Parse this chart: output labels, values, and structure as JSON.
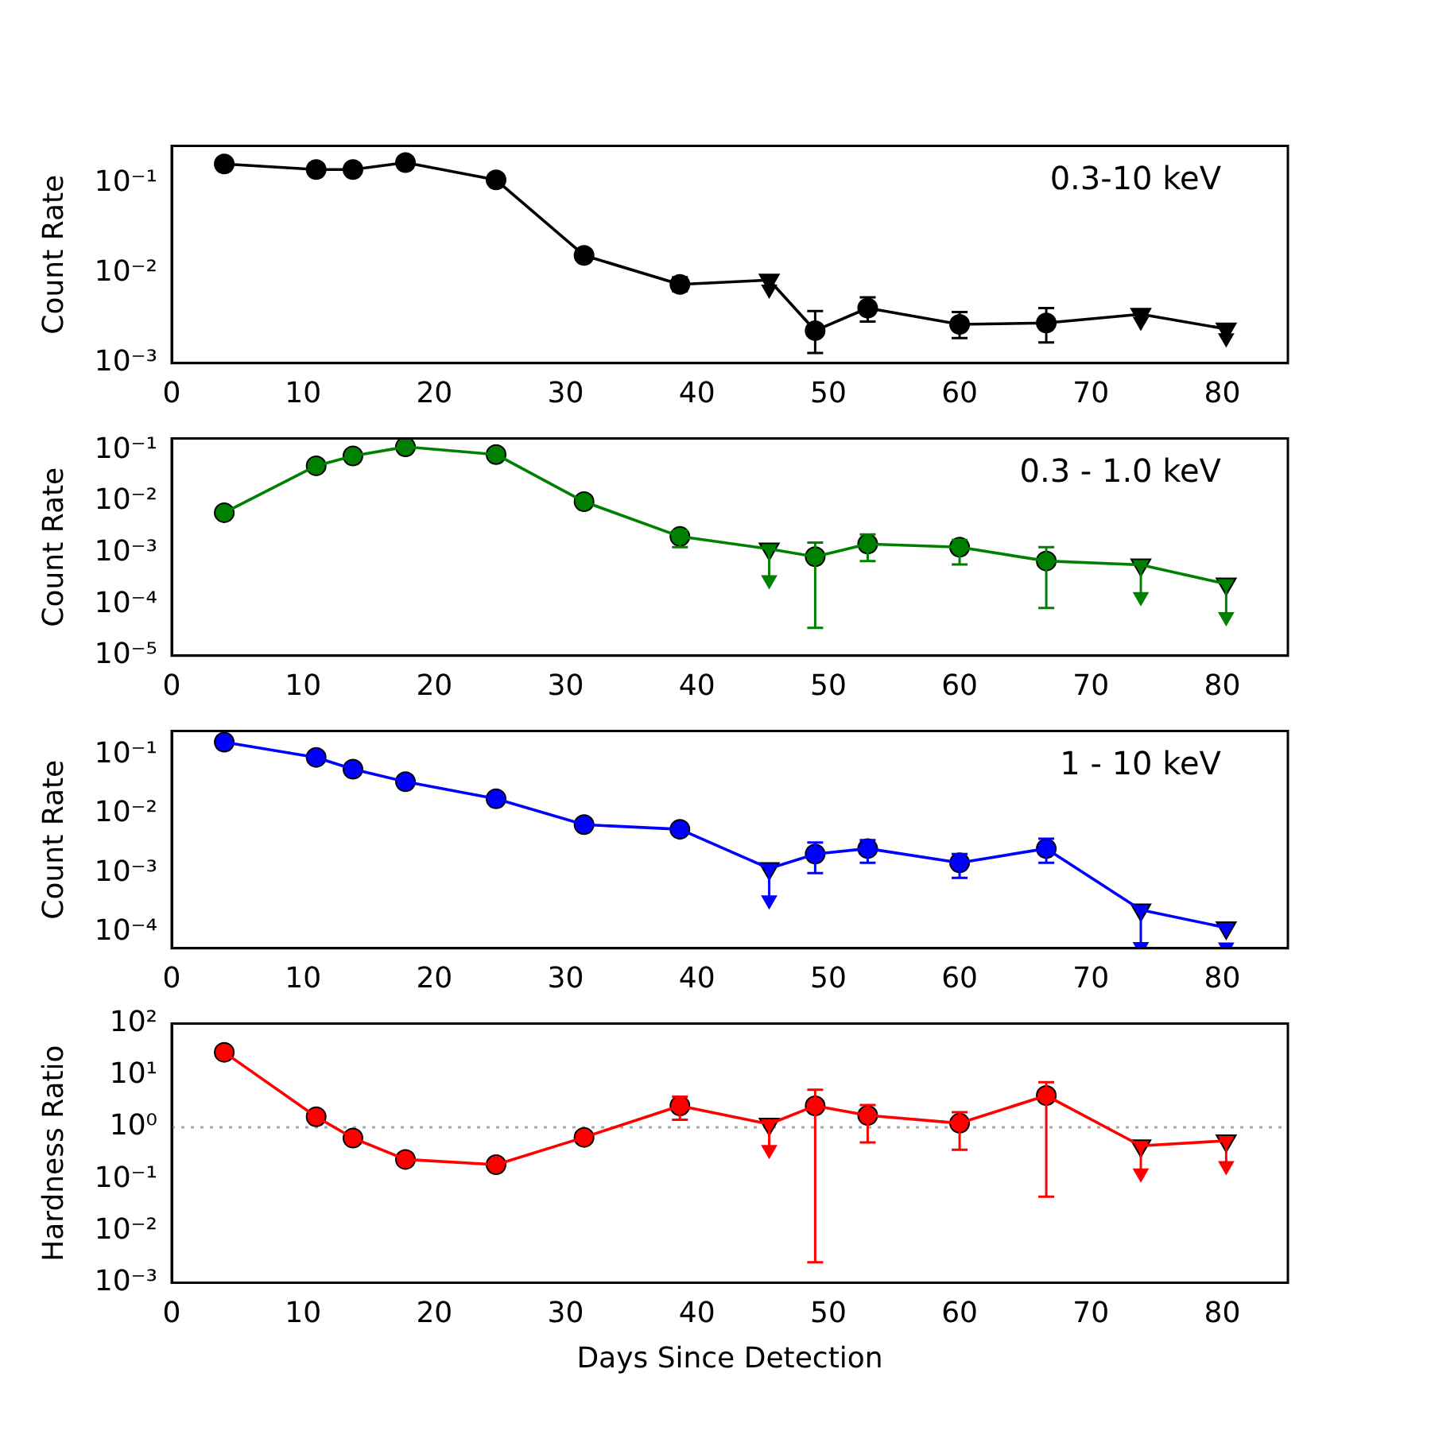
{
  "chart_data": [
    {
      "type": "line",
      "ylabel": "Count Rate",
      "annotations": [
        "0.3-10 keV"
      ],
      "log": "y",
      "grid": false,
      "xlim": [
        0,
        85
      ],
      "xticks": [
        0,
        10,
        20,
        30,
        40,
        50,
        60,
        70,
        80
      ],
      "ylim": [
        0.001,
        0.26
      ],
      "yticks": [
        {
          "value": 0.001,
          "label": "10⁻³"
        },
        {
          "value": 0.01,
          "label": "10⁻²"
        },
        {
          "value": 0.1,
          "label": "10⁻¹"
        }
      ],
      "series": [
        {
          "type": "line",
          "marker": "none",
          "color": "#000000",
          "x": [
            4,
            11,
            13.8,
            17.8,
            24.7,
            31.4,
            38.7,
            45.5,
            49,
            53,
            60,
            66.6,
            73.8,
            80.3
          ],
          "values": [
            0.164,
            0.142,
            0.142,
            0.17,
            0.109,
            0.0158,
            0.0075,
            0.0084,
            0.0023,
            0.0041,
            0.0027,
            0.0028,
            0.0035,
            0.0024
          ]
        },
        {
          "type": "scatter",
          "marker": "circle",
          "color": "#000000",
          "x": [
            4,
            11,
            13.8,
            17.8,
            24.7,
            31.4,
            38.7,
            49,
            53,
            60,
            66.6
          ],
          "values": [
            0.164,
            0.142,
            0.142,
            0.17,
            0.109,
            0.0158,
            0.0075,
            0.0023,
            0.0041,
            0.0027,
            0.0028
          ],
          "errors": [
            null,
            null,
            null,
            null,
            null,
            null,
            [
              0.0063,
              0.009
            ],
            [
              0.0013,
              0.0038
            ],
            [
              0.0029,
              0.0054
            ],
            [
              0.0019,
              0.0037
            ],
            [
              0.0017,
              0.0041
            ]
          ]
        },
        {
          "type": "scatter",
          "marker": "triangle",
          "color": "#000000",
          "x": [
            45.5,
            73.8,
            80.3
          ],
          "values": [
            0.0084,
            0.0035,
            0.0024
          ],
          "errors": [
            [
              0.0066,
              0.0084
            ],
            null,
            [
              0.0019,
              0.0024
            ]
          ]
        },
        {
          "type": "scatter",
          "marker": "triangle",
          "color": "#000000",
          "x": [
            45.5,
            73.8,
            80.3
          ],
          "values": [
            0.0066,
            0.0029,
            0.0019
          ]
        }
      ]
    },
    {
      "type": "line",
      "ylabel": "Count Rate",
      "annotations": [
        "0.3 - 1.0 keV"
      ],
      "log": "y",
      "grid": false,
      "xlim": [
        0,
        85
      ],
      "xticks": [
        0,
        10,
        20,
        30,
        40,
        50,
        60,
        70,
        80
      ],
      "ylim": [
        1e-05,
        0.17
      ],
      "yticks": [
        {
          "value": 1e-05,
          "label": "10⁻⁵"
        },
        {
          "value": 0.0001,
          "label": "10⁻⁴"
        },
        {
          "value": 0.001,
          "label": "10⁻³"
        },
        {
          "value": 0.01,
          "label": "10⁻²"
        },
        {
          "value": 0.1,
          "label": "10⁻¹"
        }
      ],
      "series": [
        {
          "type": "line",
          "marker": "none",
          "color": "#008000",
          "x": [
            4,
            11,
            13.8,
            17.8,
            24.7,
            31.4,
            38.7,
            45.5,
            49,
            53,
            60,
            66.6,
            73.8,
            80.3
          ],
          "values": [
            0.0061,
            0.05,
            0.078,
            0.117,
            0.083,
            0.01,
            0.0021,
            0.0012,
            0.00085,
            0.0015,
            0.0013,
            0.0007,
            0.00059,
            0.00025
          ]
        },
        {
          "type": "scatter",
          "marker": "circle",
          "color": "#008000",
          "x": [
            4,
            11,
            13.8,
            17.8,
            24.7,
            31.4,
            38.7,
            49,
            53,
            60,
            66.6
          ],
          "values": [
            0.0061,
            0.05,
            0.078,
            0.117,
            0.083,
            0.01,
            0.0021,
            0.00085,
            0.0015,
            0.0013,
            0.0007
          ],
          "errors": [
            null,
            null,
            null,
            null,
            null,
            null,
            [
              0.0013,
              0.0027
            ],
            [
              3.5e-05,
              0.0016
            ],
            [
              0.0007,
              0.0023
            ],
            [
              0.0006,
              0.0018
            ],
            [
              8.5e-05,
              0.0013
            ]
          ]
        },
        {
          "type": "scatter",
          "marker": "triangle",
          "color": "#008000",
          "x": [
            45.5,
            73.8,
            80.3
          ],
          "values": [
            0.0012,
            0.00059,
            0.00025
          ],
          "errors": [
            [
              0.0003,
              0.0012
            ],
            [
              0.00014,
              0.00059
            ],
            [
              5.7e-05,
              0.00025
            ]
          ]
        },
        {
          "type": "scatter",
          "marker": "triangle",
          "color": "#008000",
          "x": [
            45.5,
            73.8,
            80.3
          ],
          "values": [
            0.0003,
            0.00014,
            5.7e-05
          ]
        }
      ]
    },
    {
      "type": "line",
      "ylabel": "Count Rate",
      "annotations": [
        "1 - 10 keV"
      ],
      "log": "y",
      "grid": false,
      "xlim": [
        0,
        85
      ],
      "xticks": [
        0,
        10,
        20,
        30,
        40,
        50,
        60,
        70,
        80
      ],
      "ylim": [
        5.4e-05,
        0.25
      ],
      "yticks": [
        {
          "value": 0.0001,
          "label": "10⁻⁴"
        },
        {
          "value": 0.001,
          "label": "10⁻³"
        },
        {
          "value": 0.01,
          "label": "10⁻²"
        },
        {
          "value": 0.1,
          "label": "10⁻¹"
        }
      ],
      "series": [
        {
          "type": "line",
          "marker": "none",
          "color": "#0000ff",
          "x": [
            4,
            11,
            13.8,
            17.8,
            24.7,
            31.4,
            38.7,
            45.5,
            49,
            53,
            60,
            66.6,
            73.8,
            80.3
          ],
          "values": [
            0.163,
            0.09,
            0.057,
            0.035,
            0.018,
            0.0066,
            0.0055,
            0.0012,
            0.0021,
            0.0026,
            0.0015,
            0.0026,
            0.00024,
            0.00012
          ]
        },
        {
          "type": "scatter",
          "marker": "circle",
          "color": "#0000ff",
          "x": [
            4,
            11,
            13.8,
            17.8,
            24.7,
            31.4,
            38.7,
            49,
            53,
            60,
            66.6
          ],
          "values": [
            0.163,
            0.09,
            0.057,
            0.035,
            0.018,
            0.0066,
            0.0055,
            0.0021,
            0.0026,
            0.0015,
            0.0026
          ],
          "errors": [
            null,
            null,
            null,
            null,
            null,
            null,
            null,
            [
              0.001,
              0.0033
            ],
            [
              0.0015,
              0.0036
            ],
            [
              0.00083,
              0.0021
            ],
            [
              0.0015,
              0.0038
            ]
          ]
        },
        {
          "type": "scatter",
          "marker": "triangle",
          "color": "#0000ff",
          "x": [
            45.5,
            73.8,
            80.3
          ],
          "values": [
            0.0012,
            0.00024,
            0.00012
          ],
          "errors": [
            [
              0.00035,
              0.0012
            ],
            [
              5.7e-05,
              0.00024
            ],
            null
          ]
        },
        {
          "type": "scatter",
          "marker": "triangle",
          "color": "#0000ff",
          "x": [
            45.5,
            73.8,
            80.3
          ],
          "values": [
            0.00035,
            5.7e-05,
            5.6e-05
          ]
        }
      ]
    },
    {
      "type": "line",
      "xlabel": "Days Since Detection",
      "ylabel": "Hardness Ratio",
      "log": "y",
      "grid": false,
      "xlim": [
        0,
        85
      ],
      "xticks": [
        0,
        10,
        20,
        30,
        40,
        50,
        60,
        70,
        80
      ],
      "ylim": [
        0.001,
        100
      ],
      "yticks": [
        {
          "value": 0.001,
          "label": "10⁻³"
        },
        {
          "value": 0.01,
          "label": "10⁻²"
        },
        {
          "value": 0.1,
          "label": "10⁻¹"
        },
        {
          "value": 1,
          "label": "10⁰"
        },
        {
          "value": 10,
          "label": "10¹"
        },
        {
          "value": 100,
          "label": "10²"
        }
      ],
      "ref_lines": [
        {
          "axis": "y",
          "value": 1,
          "color": "#aaaaaa",
          "line_style": "dotted"
        }
      ],
      "series": [
        {
          "type": "line",
          "marker": "none",
          "color": "#ff0000",
          "x": [
            4,
            11,
            13.8,
            17.8,
            24.7,
            31.4,
            38.7,
            45.5,
            49,
            53,
            60,
            66.6,
            73.8,
            80.3
          ],
          "values": [
            28,
            1.6,
            0.62,
            0.24,
            0.19,
            0.64,
            2.6,
            1.15,
            2.6,
            1.7,
            1.2,
            4.1,
            0.44,
            0.55
          ]
        },
        {
          "type": "scatter",
          "marker": "circle",
          "color": "#ff0000",
          "x": [
            4,
            11,
            13.8,
            17.8,
            24.7,
            31.4,
            38.7,
            49,
            53,
            60,
            66.6
          ],
          "values": [
            28,
            1.6,
            0.62,
            0.24,
            0.19,
            0.64,
            2.6,
            2.6,
            1.7,
            1.2,
            4.1
          ],
          "errors": [
            null,
            null,
            null,
            null,
            null,
            null,
            [
              1.4,
              3.9
            ],
            [
              0.0025,
              5.3
            ],
            [
              0.51,
              2.7
            ],
            [
              0.37,
              1.95
            ],
            [
              0.046,
              7.4
            ]
          ]
        },
        {
          "type": "scatter",
          "marker": "triangle",
          "color": "#ff0000",
          "x": [
            45.5,
            73.8,
            80.3
          ],
          "values": [
            1.15,
            0.44,
            0.55
          ],
          "errors": [
            [
              0.37,
              1.15
            ],
            [
              0.13,
              0.44
            ],
            [
              0.18,
              0.55
            ]
          ]
        },
        {
          "type": "scatter",
          "marker": "triangle",
          "color": "#ff0000",
          "x": [
            45.5,
            73.8,
            80.3
          ],
          "values": [
            0.37,
            0.13,
            0.18
          ]
        }
      ]
    }
  ]
}
